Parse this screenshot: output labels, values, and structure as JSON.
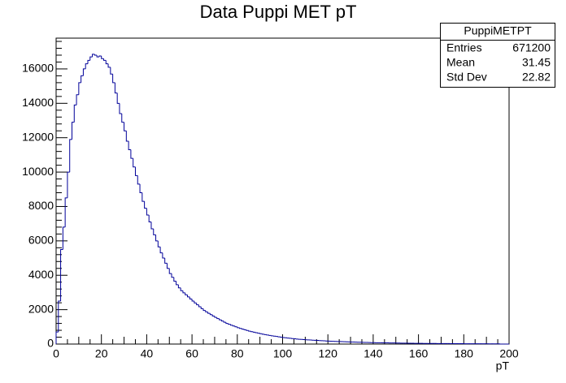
{
  "chart_data": {
    "type": "histogram",
    "title": "Data Puppi MET pT",
    "x_label": "pT",
    "bins": [
      0,
      1,
      2,
      3,
      4,
      5,
      6,
      7,
      8,
      9,
      10,
      11,
      12,
      13,
      14,
      15,
      16,
      17,
      18,
      19,
      20,
      21,
      22,
      23,
      24,
      25,
      26,
      27,
      28,
      29,
      30,
      31,
      32,
      33,
      34,
      35,
      36,
      37,
      38,
      39,
      40,
      41,
      42,
      43,
      44,
      45,
      46,
      47,
      48,
      49,
      50,
      51,
      52,
      53,
      54,
      55,
      56,
      57,
      58,
      59,
      60,
      61,
      62,
      63,
      64,
      65,
      66,
      67,
      68,
      69,
      70,
      71,
      72,
      73,
      74,
      75,
      76,
      77,
      78,
      79,
      80,
      81,
      82,
      83,
      84,
      85,
      86,
      87,
      88,
      89,
      90,
      91,
      92,
      93,
      94,
      95,
      96,
      97,
      98,
      99,
      100,
      101,
      102,
      103,
      104,
      105,
      106,
      107,
      108,
      109,
      110,
      111,
      112,
      113,
      114,
      115,
      116,
      117,
      118,
      119,
      120,
      121,
      122,
      123,
      124,
      125,
      126,
      127,
      128,
      129,
      130,
      131,
      132,
      133,
      134,
      135,
      136,
      137,
      138,
      139,
      140,
      141,
      142,
      143,
      144,
      145,
      146,
      147,
      148,
      149,
      150,
      151,
      152,
      153,
      154,
      155,
      156,
      157,
      158,
      159,
      160,
      161,
      162,
      163,
      164,
      165,
      166,
      167,
      168,
      169,
      170,
      171,
      172,
      173,
      174,
      175,
      176,
      177,
      178,
      179,
      180,
      181,
      182,
      183,
      184,
      185,
      186,
      187,
      188,
      189,
      190,
      191,
      192,
      193,
      194,
      195,
      196,
      197,
      198,
      199,
      200
    ],
    "values": [
      700,
      2500,
      5500,
      6800,
      8500,
      10000,
      11900,
      12900,
      13900,
      14500,
      15200,
      15600,
      16000,
      16300,
      16500,
      16700,
      16850,
      16800,
      16700,
      16750,
      16600,
      16500,
      16300,
      16100,
      15700,
      15200,
      14600,
      14000,
      13400,
      12900,
      12400,
      11800,
      11300,
      10800,
      10300,
      9800,
      9300,
      8800,
      8300,
      7900,
      7500,
      7100,
      6700,
      6350,
      6000,
      5650,
      5300,
      5000,
      4700,
      4400,
      4100,
      3880,
      3660,
      3450,
      3270,
      3100,
      2980,
      2860,
      2740,
      2620,
      2500,
      2390,
      2280,
      2170,
      2060,
      1950,
      1870,
      1790,
      1710,
      1630,
      1550,
      1480,
      1410,
      1340,
      1270,
      1200,
      1150,
      1100,
      1050,
      1000,
      950,
      910,
      870,
      830,
      790,
      750,
      720,
      690,
      660,
      630,
      600,
      575,
      550,
      525,
      500,
      480,
      460,
      440,
      420,
      400,
      380,
      365,
      350,
      335,
      320,
      305,
      290,
      280,
      270,
      260,
      250,
      242,
      234,
      226,
      218,
      210,
      202,
      194,
      186,
      178,
      170,
      165,
      160,
      155,
      150,
      145,
      140,
      135,
      130,
      125,
      120,
      116,
      112,
      108,
      104,
      100,
      96,
      92,
      88,
      84,
      80,
      78,
      76,
      74,
      72,
      70,
      68,
      66,
      64,
      62,
      60,
      58,
      56,
      54,
      52,
      50,
      48,
      46,
      44,
      42,
      40,
      39,
      38,
      37,
      36,
      35,
      34,
      33,
      32,
      31,
      30,
      29,
      28,
      27,
      26,
      25,
      24,
      23,
      22,
      21,
      20,
      19,
      19,
      18,
      18,
      17,
      17,
      16,
      16,
      15,
      15,
      14,
      14,
      13,
      13,
      12,
      0,
      0,
      0,
      0
    ],
    "color": "#000099",
    "xlim": [
      0,
      200
    ],
    "xticks": [
      0,
      20,
      40,
      60,
      80,
      100,
      120,
      140,
      160,
      180,
      200
    ],
    "ylim": [
      0,
      17790
    ],
    "yticks": [
      0,
      2000,
      4000,
      6000,
      8000,
      10000,
      12000,
      14000,
      16000
    ],
    "stats": {
      "title": "PuppiMETPT",
      "rows": [
        [
          "Entries",
          671200
        ],
        [
          "Mean",
          31.45
        ],
        [
          "Std Dev",
          22.82
        ]
      ]
    }
  }
}
